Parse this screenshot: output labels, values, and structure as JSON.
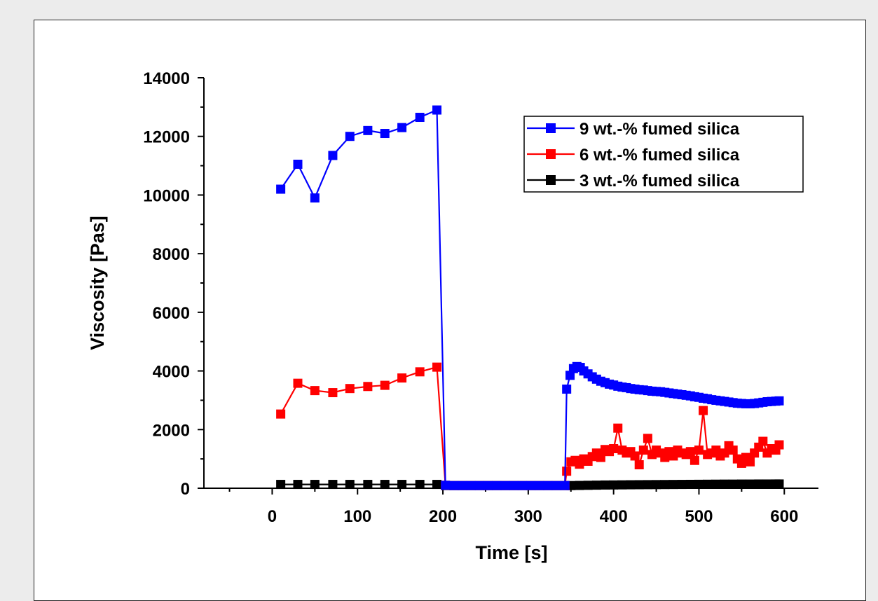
{
  "chart_data": {
    "type": "line",
    "title": "",
    "xlabel": "Time [s]",
    "ylabel": "Viscosity [Pas]",
    "xlim": [
      -80,
      640
    ],
    "ylim": [
      0,
      14000
    ],
    "xticks": [
      0,
      100,
      200,
      300,
      400,
      500,
      600
    ],
    "yticks": [
      0,
      2000,
      4000,
      6000,
      8000,
      10000,
      12000,
      14000
    ],
    "grid": false,
    "legend_position": "top-right",
    "series": [
      {
        "name": "9 wt.-% fumed silica",
        "color": "#0000ff",
        "marker": "square",
        "x": [
          10,
          30,
          50,
          71,
          91,
          112,
          132,
          152,
          173,
          193,
          203,
          213,
          223,
          233,
          243,
          253,
          263,
          273,
          283,
          293,
          303,
          313,
          323,
          333,
          343,
          345,
          349,
          353,
          357,
          361,
          365,
          370,
          375,
          380,
          385,
          390,
          395,
          400,
          405,
          410,
          415,
          420,
          425,
          430,
          435,
          440,
          445,
          450,
          455,
          460,
          465,
          470,
          475,
          480,
          485,
          490,
          495,
          500,
          505,
          510,
          515,
          520,
          525,
          530,
          535,
          540,
          545,
          550,
          555,
          560,
          565,
          570,
          575,
          580,
          585,
          590,
          594
        ],
        "y": [
          10200,
          11050,
          9900,
          11350,
          12000,
          12200,
          12100,
          12300,
          12650,
          12900,
          100,
          90,
          90,
          90,
          90,
          90,
          90,
          90,
          90,
          90,
          90,
          90,
          90,
          90,
          90,
          3380,
          3850,
          4080,
          4150,
          4120,
          4000,
          3900,
          3800,
          3720,
          3650,
          3600,
          3550,
          3520,
          3480,
          3450,
          3430,
          3400,
          3380,
          3360,
          3350,
          3330,
          3310,
          3300,
          3290,
          3270,
          3250,
          3230,
          3210,
          3190,
          3170,
          3150,
          3120,
          3100,
          3070,
          3050,
          3020,
          3000,
          2980,
          2960,
          2940,
          2920,
          2900,
          2890,
          2880,
          2880,
          2890,
          2910,
          2930,
          2950,
          2960,
          2970,
          2980
        ]
      },
      {
        "name": "6 wt.-% fumed silica",
        "color": "#ff0000",
        "marker": "square",
        "x": [
          10,
          30,
          50,
          71,
          91,
          112,
          132,
          152,
          173,
          193,
          203,
          213,
          223,
          233,
          243,
          253,
          263,
          273,
          283,
          293,
          303,
          313,
          323,
          333,
          343,
          345,
          350,
          355,
          360,
          365,
          370,
          375,
          380,
          385,
          390,
          395,
          400,
          405,
          410,
          415,
          420,
          425,
          430,
          435,
          440,
          445,
          450,
          455,
          460,
          465,
          470,
          475,
          480,
          485,
          490,
          495,
          500,
          505,
          510,
          515,
          520,
          525,
          530,
          535,
          540,
          545,
          550,
          555,
          560,
          565,
          570,
          575,
          580,
          585,
          590,
          594
        ],
        "y": [
          2530,
          3580,
          3330,
          3260,
          3400,
          3470,
          3510,
          3760,
          3970,
          4130,
          100,
          90,
          90,
          90,
          90,
          90,
          90,
          90,
          90,
          90,
          90,
          90,
          90,
          90,
          90,
          580,
          900,
          950,
          820,
          1000,
          920,
          1080,
          1200,
          1050,
          1320,
          1250,
          1350,
          2050,
          1300,
          1200,
          1250,
          1100,
          800,
          1300,
          1700,
          1150,
          1300,
          1200,
          1050,
          1250,
          1100,
          1300,
          1200,
          1150,
          1250,
          950,
          1300,
          2650,
          1150,
          1200,
          1300,
          1100,
          1200,
          1450,
          1300,
          1000,
          850,
          1050,
          900,
          1200,
          1400,
          1600,
          1200,
          1350,
          1300,
          1480
        ]
      },
      {
        "name": "3 wt.-% fumed silica",
        "color": "#000000",
        "marker": "square",
        "x": [
          10,
          30,
          50,
          71,
          91,
          112,
          132,
          152,
          173,
          193,
          203,
          213,
          223,
          233,
          243,
          253,
          263,
          273,
          283,
          293,
          303,
          313,
          323,
          333,
          343,
          350,
          360,
          370,
          380,
          390,
          400,
          410,
          420,
          430,
          440,
          450,
          460,
          470,
          480,
          490,
          500,
          510,
          520,
          530,
          540,
          550,
          560,
          570,
          580,
          590,
          594
        ],
        "y": [
          130,
          130,
          130,
          130,
          130,
          130,
          130,
          130,
          130,
          130,
          90,
          90,
          90,
          90,
          90,
          90,
          90,
          90,
          90,
          90,
          90,
          90,
          90,
          90,
          90,
          90,
          95,
          100,
          105,
          110,
          112,
          115,
          118,
          120,
          122,
          124,
          126,
          128,
          130,
          132,
          134,
          136,
          138,
          140,
          140,
          142,
          142,
          144,
          144,
          145,
          145
        ]
      }
    ]
  }
}
